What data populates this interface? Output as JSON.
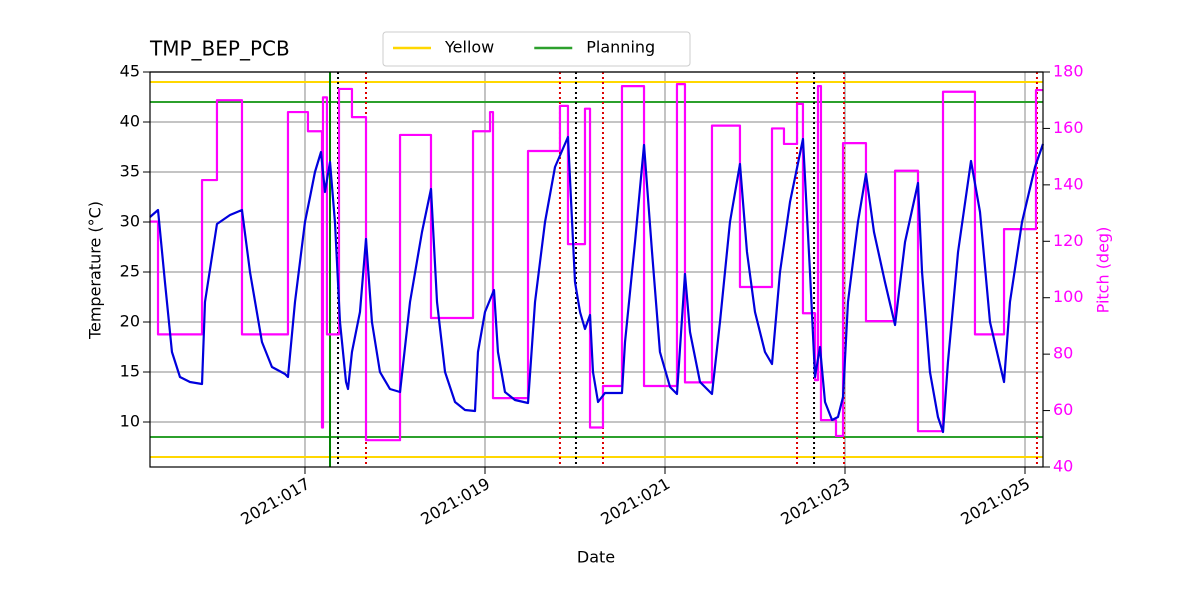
{
  "chart_data": {
    "type": "line",
    "title": "TMP_BEP_PCB",
    "xlabel": "Date",
    "ylabel": "Temperature (°C)",
    "y2label": "Pitch (deg)",
    "y2color": "#ff00ff",
    "grid": true,
    "legend": "upper center",
    "xlim": [
      15.278,
      25.2
    ],
    "xticks": [
      {
        "value": 17,
        "label": "2021:017"
      },
      {
        "value": 19,
        "label": "2021:019"
      },
      {
        "value": 21,
        "label": "2021:021"
      },
      {
        "value": 23,
        "label": "2021:023"
      },
      {
        "value": 25,
        "label": "2021:025"
      }
    ],
    "ylim": [
      5.5,
      45
    ],
    "yticks": [
      10,
      15,
      20,
      25,
      30,
      35,
      40,
      45
    ],
    "y2lim": [
      40,
      180
    ],
    "y2ticks": [
      40,
      60,
      80,
      100,
      120,
      140,
      160,
      180
    ],
    "hlines": [
      {
        "name": "Yellow",
        "color": "#ffd700",
        "values": [
          44,
          6.5
        ]
      },
      {
        "name": "Planning",
        "color": "#2ca02c",
        "values": [
          42,
          8.5
        ]
      }
    ],
    "vlines": [
      {
        "color": "#008000",
        "style": "solid",
        "x": [
          17.278
        ]
      },
      {
        "color": "#000000",
        "style": "dotted",
        "x": [
          17.367,
          20.011,
          22.656
        ]
      },
      {
        "color": "#dd0000",
        "style": "dotted",
        "x": [
          17.678,
          19.833,
          20.311,
          22.467,
          22.989,
          25.133
        ]
      }
    ],
    "series": [
      {
        "color": "#ff00ff",
        "axis": "y2",
        "x": [
          15.278,
          15.367,
          15.367,
          15.856,
          15.856,
          16.022,
          16.022,
          16.3,
          16.3,
          16.811,
          16.811,
          17.033,
          17.033,
          17.189,
          17.189,
          17.2,
          17.2,
          17.244,
          17.244,
          17.378,
          17.378,
          17.522,
          17.522,
          17.678,
          17.678,
          18.056,
          18.056,
          18.4,
          18.4,
          18.867,
          18.867,
          19.056,
          19.056,
          19.089,
          19.089,
          19.478,
          19.478,
          19.833,
          19.833,
          19.922,
          19.922,
          20.111,
          20.111,
          20.167,
          20.167,
          20.311,
          20.311,
          20.522,
          20.522,
          20.767,
          20.767,
          21.133,
          21.133,
          21.222,
          21.222,
          21.522,
          21.522,
          21.833,
          21.833,
          22.189,
          22.189,
          22.322,
          22.322,
          22.467,
          22.467,
          22.533,
          22.533,
          22.667,
          22.667,
          22.7,
          22.7,
          22.733,
          22.733,
          22.9,
          22.9,
          22.978,
          22.978,
          23.233,
          23.233,
          23.556,
          23.556,
          23.811,
          23.811,
          24.089,
          24.089,
          24.444,
          24.444,
          24.767,
          24.767,
          25.122,
          25.122,
          25.2
        ],
        "values": [
          127,
          127,
          87,
          87,
          141.7,
          141.7,
          170,
          170,
          87,
          87,
          165.8,
          165.8,
          159,
          159,
          54,
          54,
          171,
          171,
          87,
          87,
          174,
          174,
          164,
          164,
          49.5,
          49.5,
          157.7,
          157.7,
          92.8,
          92.8,
          159,
          159,
          165.8,
          165.8,
          64.4,
          64.4,
          152,
          152,
          168,
          168,
          119,
          119,
          167,
          167,
          54,
          54,
          68.7,
          68.7,
          175,
          175,
          68.7,
          68.7,
          175.7,
          175.7,
          70,
          70,
          161,
          161,
          103.8,
          103.8,
          160,
          160,
          154.5,
          154.5,
          168.7,
          168.7,
          94.5,
          94.5,
          70.8,
          70.8,
          175,
          175,
          56.6,
          56.6,
          51,
          51,
          154.8,
          154.8,
          91.7,
          91.7,
          145,
          145,
          52.7,
          52.7,
          173,
          173,
          87,
          87,
          124.3,
          124.3,
          173.6,
          173.6
        ]
      },
      {
        "color": "#0000dd",
        "axis": "y",
        "x": [
          15.278,
          15.367,
          15.444,
          15.522,
          15.611,
          15.722,
          15.856,
          15.889,
          16.022,
          16.167,
          16.3,
          16.389,
          16.522,
          16.633,
          16.778,
          16.811,
          16.889,
          17.0,
          17.056,
          17.111,
          17.178,
          17.222,
          17.278,
          17.333,
          17.389,
          17.456,
          17.478,
          17.522,
          17.611,
          17.678,
          17.744,
          17.833,
          17.944,
          18.056,
          18.167,
          18.3,
          18.4,
          18.467,
          18.556,
          18.667,
          18.778,
          18.889,
          18.922,
          19.0,
          19.1,
          19.144,
          19.222,
          19.333,
          19.478,
          19.556,
          19.667,
          19.778,
          19.922,
          20.0,
          20.056,
          20.111,
          20.167,
          20.2,
          20.256,
          20.333,
          20.522,
          20.556,
          20.667,
          20.767,
          20.856,
          20.944,
          21.056,
          21.133,
          21.222,
          21.278,
          21.389,
          21.522,
          21.611,
          21.722,
          21.833,
          21.911,
          22.0,
          22.111,
          22.189,
          22.278,
          22.389,
          22.533,
          22.611,
          22.667,
          22.722,
          22.778,
          22.856,
          22.922,
          22.978,
          23.033,
          23.144,
          23.233,
          23.322,
          23.444,
          23.556,
          23.667,
          23.811,
          23.856,
          23.944,
          24.033,
          24.089,
          24.144,
          24.256,
          24.4,
          24.5,
          24.611,
          24.767,
          24.833,
          24.967,
          25.111,
          25.2
        ],
        "values": [
          30.5,
          31.2,
          24,
          17,
          14.5,
          14,
          13.8,
          22,
          29.8,
          30.7,
          31.2,
          25,
          18,
          15.5,
          14.8,
          14.5,
          22,
          30,
          32.5,
          35,
          37,
          33,
          36,
          30,
          20,
          14,
          13.3,
          17,
          21,
          28.3,
          20,
          15,
          13.3,
          13,
          22,
          29,
          33.3,
          22,
          15,
          12,
          11.2,
          11.1,
          17,
          21,
          23.2,
          17,
          13,
          12.2,
          11.9,
          22,
          30,
          35.5,
          38.5,
          24,
          21,
          19.3,
          20.7,
          15,
          12,
          12.9,
          12.9,
          18,
          28,
          37.7,
          27,
          17,
          13.5,
          12.8,
          24.8,
          19,
          14,
          12.8,
          20,
          30,
          35.8,
          27,
          21,
          17,
          15.8,
          25,
          32,
          38.3,
          25,
          14.5,
          17.5,
          12,
          10.2,
          10.5,
          12.5,
          22,
          30,
          34.8,
          29,
          24,
          19.7,
          28,
          33.9,
          25,
          15,
          10.5,
          9,
          16,
          27,
          36.1,
          31,
          20,
          14,
          22,
          30,
          35.5,
          37.8
        ]
      }
    ]
  }
}
